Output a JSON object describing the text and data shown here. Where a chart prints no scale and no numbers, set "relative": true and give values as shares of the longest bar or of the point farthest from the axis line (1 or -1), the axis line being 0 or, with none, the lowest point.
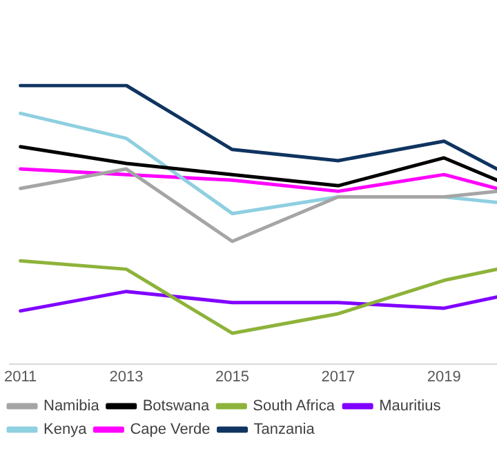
{
  "chart_data": {
    "type": "line",
    "relative": true,
    "x": [
      2011,
      2013,
      2015,
      2017,
      2019,
      2020
    ],
    "xlim": [
      2010.8,
      2020
    ],
    "xticks": [
      2011,
      2013,
      2015,
      2017,
      2019
    ],
    "grid": false,
    "legend": "bottom",
    "marker": "none",
    "line_style": "solid",
    "series": [
      {
        "name": "Namibia",
        "color": "#a5a5a5",
        "values": [
          0.63,
          0.7,
          0.44,
          0.6,
          0.6,
          0.62
        ]
      },
      {
        "name": "Botswana",
        "color": "#000000",
        "values": [
          0.78,
          0.72,
          0.68,
          0.64,
          0.74,
          0.66
        ]
      },
      {
        "name": "South Africa",
        "color": "#8db33a",
        "values": [
          0.37,
          0.34,
          0.11,
          0.18,
          0.3,
          0.34
        ]
      },
      {
        "name": "Mauritius",
        "color": "#8000ff",
        "values": [
          0.19,
          0.26,
          0.22,
          0.22,
          0.2,
          0.24
        ]
      },
      {
        "name": "Kenya",
        "color": "#8ecfe0",
        "values": [
          0.9,
          0.81,
          0.54,
          0.6,
          0.6,
          0.58
        ]
      },
      {
        "name": "Cape Verde",
        "color": "#ff00ff",
        "values": [
          0.7,
          0.68,
          0.66,
          0.62,
          0.68,
          0.63
        ]
      },
      {
        "name": "Tanzania",
        "color": "#0f3460",
        "values": [
          1,
          1,
          0.77,
          0.73,
          0.8,
          0.7
        ]
      }
    ]
  }
}
